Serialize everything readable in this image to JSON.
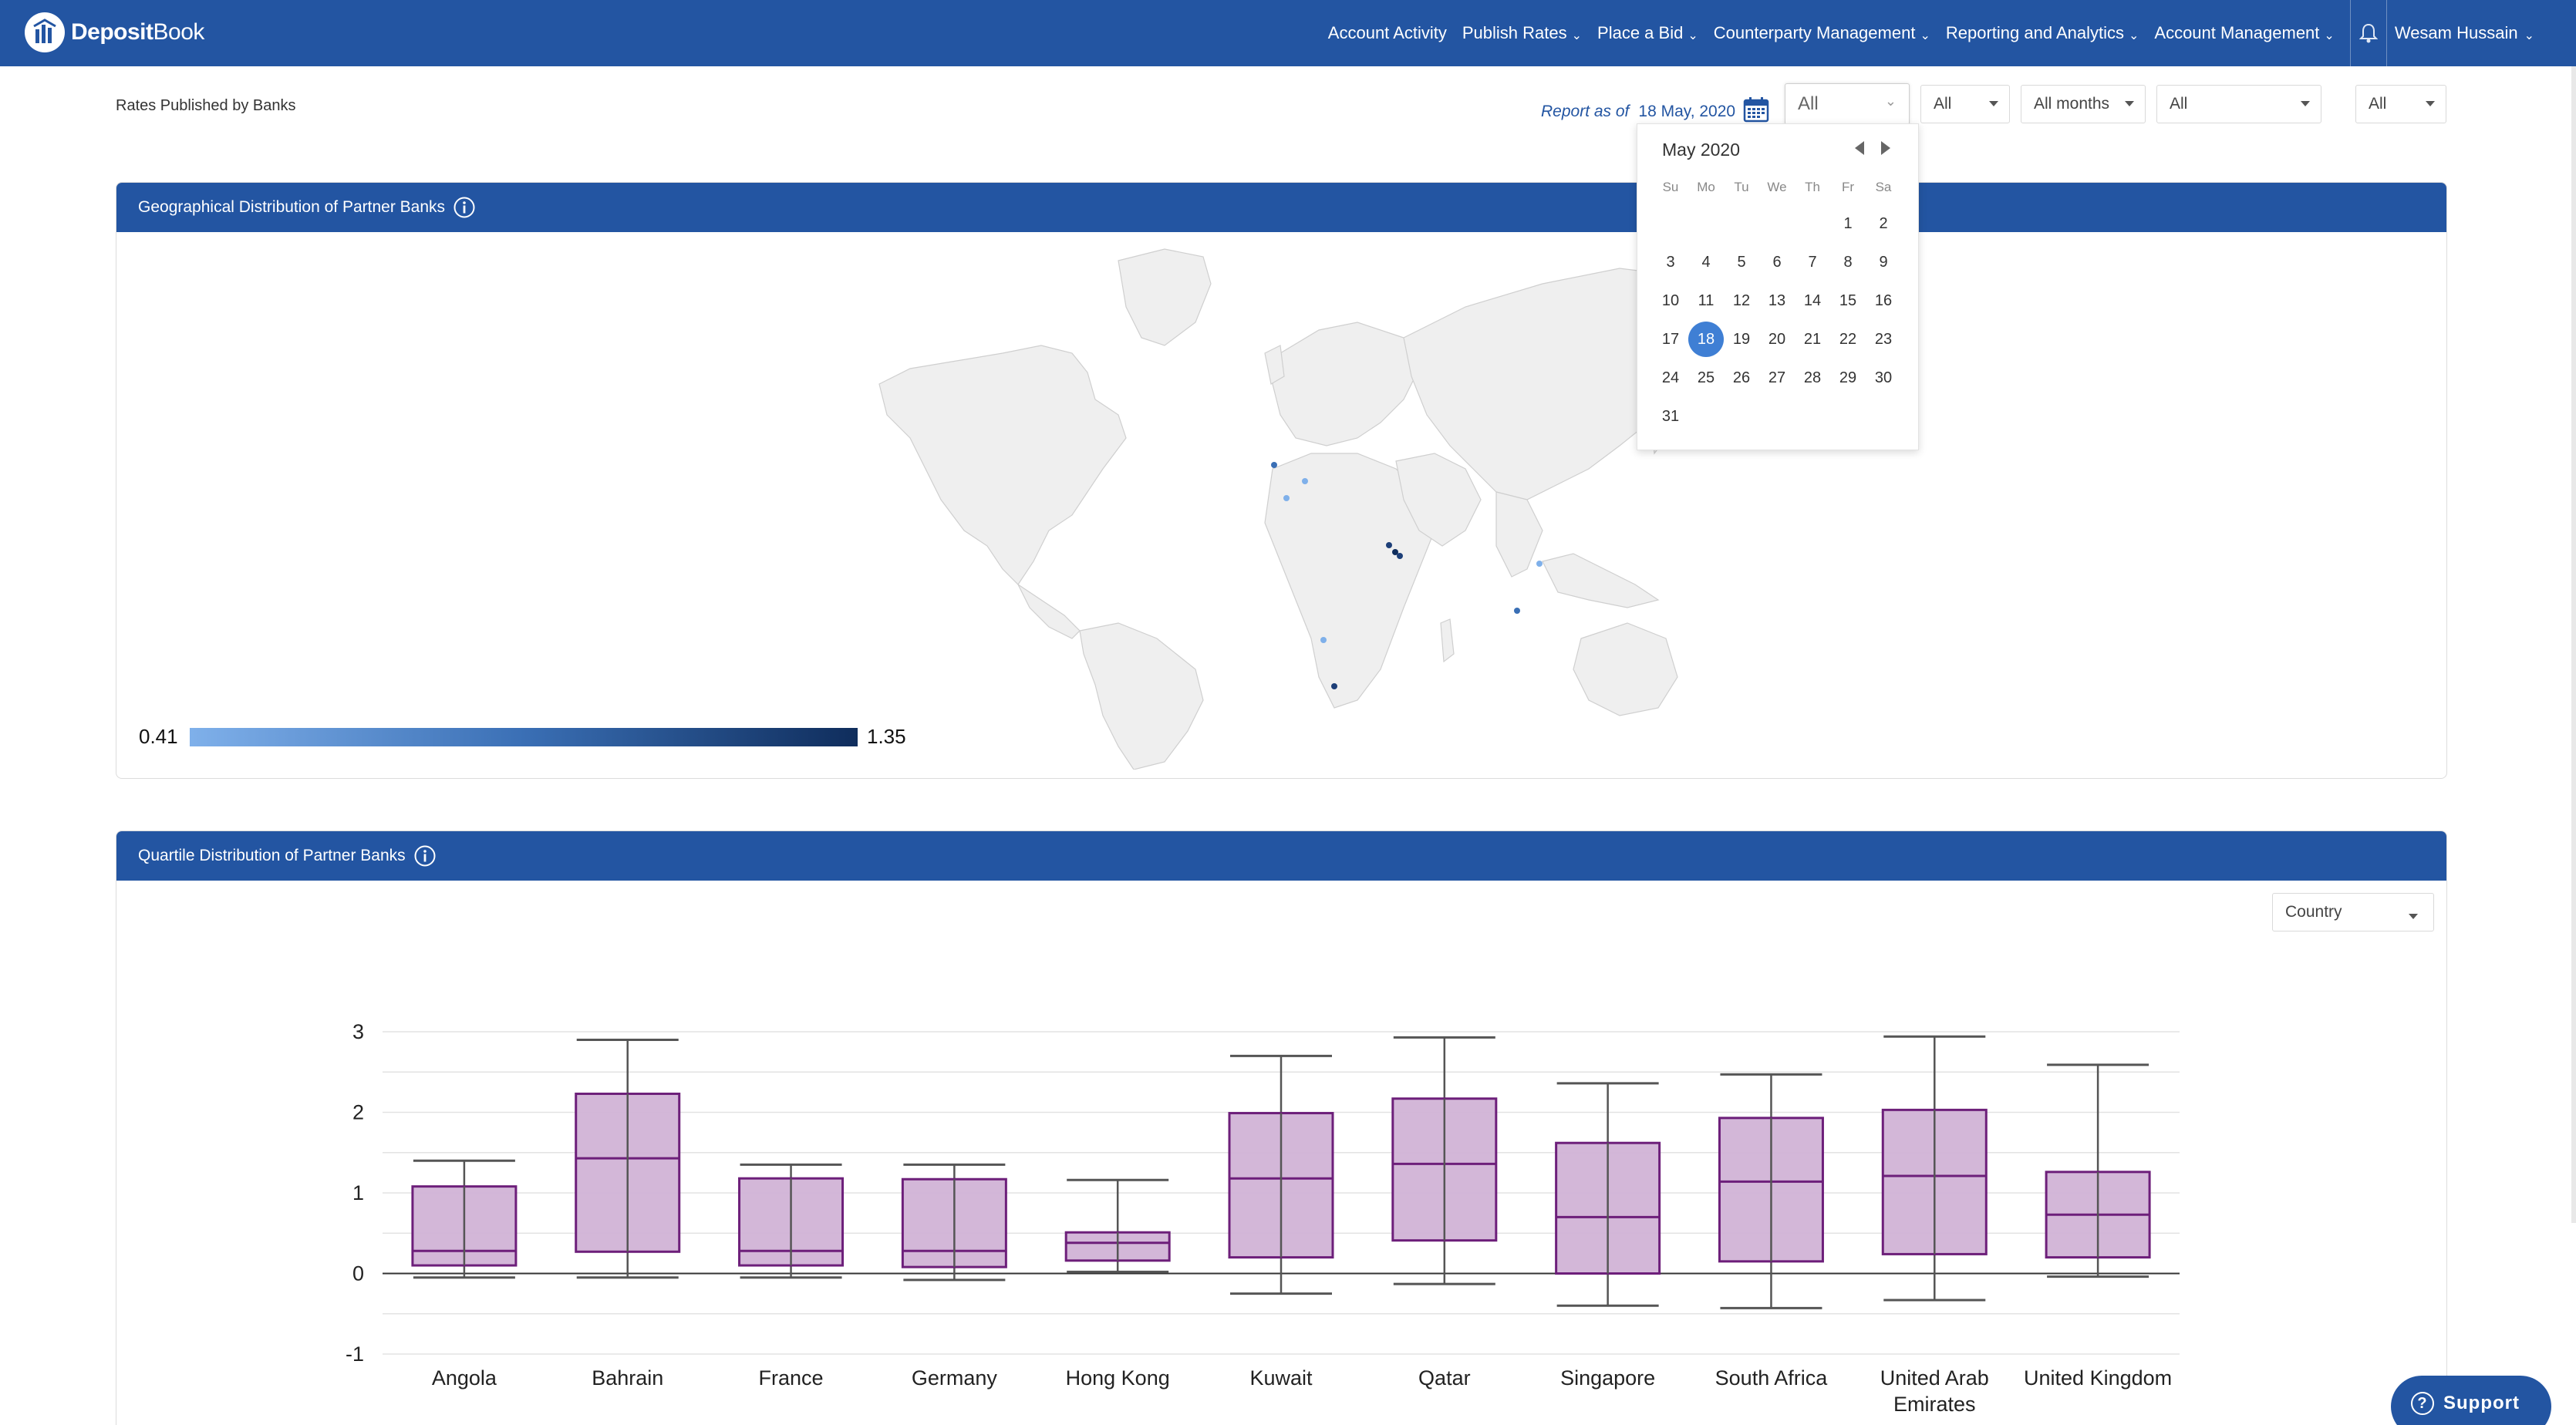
{
  "brand": {
    "name_bold": "Deposit",
    "name_light": "Book"
  },
  "nav": {
    "items": [
      {
        "label": "Account Activity",
        "has_dropdown": false
      },
      {
        "label": "Publish Rates",
        "has_dropdown": true
      },
      {
        "label": "Place a Bid",
        "has_dropdown": true
      },
      {
        "label": "Counterparty Management",
        "has_dropdown": true
      },
      {
        "label": "Reporting and Analytics",
        "has_dropdown": true
      },
      {
        "label": "Account Management",
        "has_dropdown": true
      }
    ],
    "user_name": "Wesam Hussain"
  },
  "page": {
    "title": "Rates Published by Banks"
  },
  "filters": {
    "report_label": "Report as of",
    "report_date": "18 May, 2020",
    "select1": "All",
    "select2": "All",
    "select3": "All months",
    "select4": "All",
    "select5": "All"
  },
  "calendar": {
    "month_label": "May 2020",
    "dow": [
      "Su",
      "Mo",
      "Tu",
      "We",
      "Th",
      "Fr",
      "Sa"
    ],
    "first_weekday": 5,
    "days_in_month": 31,
    "selected_day": 18
  },
  "geo_panel": {
    "title": "Geographical Distribution of Partner Banks",
    "legend_min": "0.41",
    "legend_max": "1.35",
    "colors": {
      "legend_low": "#7fb0ea",
      "legend_high": "#0f2d5c"
    }
  },
  "quartile_panel": {
    "title": "Quartile Distribution of Partner Banks",
    "group_by": "Country"
  },
  "chart_data": {
    "type": "boxplot",
    "categories": [
      "Angola",
      "Bahrain",
      "France",
      "Germany",
      "Hong Kong",
      "Kuwait",
      "Qatar",
      "Singapore",
      "South Africa",
      "United Arab Emirates",
      "United Kingdom"
    ],
    "ylim": [
      -1,
      3
    ],
    "yticks": [
      3,
      2,
      1,
      0,
      -1
    ],
    "grid": true,
    "box_color": "#d1b3d6",
    "box_edge": "#6d1f7a",
    "series": [
      {
        "category": "Angola",
        "min": -0.05,
        "q1": 0.1,
        "median": 0.28,
        "q3": 1.08,
        "max": 1.4
      },
      {
        "category": "Bahrain",
        "min": -0.05,
        "q1": 0.27,
        "median": 1.43,
        "q3": 2.23,
        "max": 2.9
      },
      {
        "category": "France",
        "min": -0.05,
        "q1": 0.1,
        "median": 0.28,
        "q3": 1.18,
        "max": 1.35
      },
      {
        "category": "Germany",
        "min": -0.08,
        "q1": 0.08,
        "median": 0.28,
        "q3": 1.17,
        "max": 1.35
      },
      {
        "category": "Hong Kong",
        "min": 0.02,
        "q1": 0.16,
        "median": 0.38,
        "q3": 0.51,
        "max": 1.16
      },
      {
        "category": "Kuwait",
        "min": -0.25,
        "q1": 0.2,
        "median": 1.18,
        "q3": 1.99,
        "max": 2.7
      },
      {
        "category": "Qatar",
        "min": -0.13,
        "q1": 0.41,
        "median": 1.36,
        "q3": 2.17,
        "max": 2.93
      },
      {
        "category": "Singapore",
        "min": -0.4,
        "q1": 0.0,
        "median": 0.7,
        "q3": 1.62,
        "max": 2.36
      },
      {
        "category": "South Africa",
        "min": -0.43,
        "q1": 0.15,
        "median": 1.14,
        "q3": 1.93,
        "max": 2.47
      },
      {
        "category": "United Arab Emirates",
        "min": -0.33,
        "q1": 0.24,
        "median": 1.21,
        "q3": 2.03,
        "max": 2.94
      },
      {
        "category": "United Kingdom",
        "min": -0.04,
        "q1": 0.2,
        "median": 0.73,
        "q3": 1.26,
        "max": 2.59
      }
    ]
  },
  "support": {
    "label": "Support"
  }
}
